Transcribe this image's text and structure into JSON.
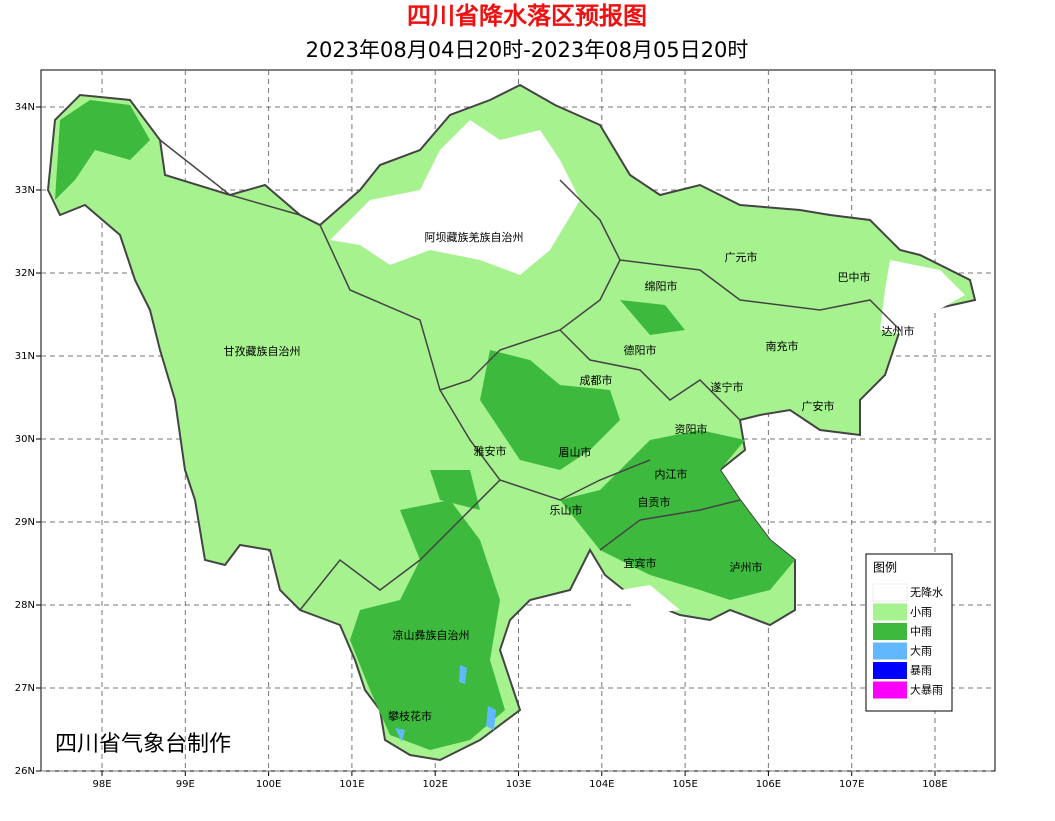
{
  "title": "四川省降水落区预报图",
  "subtitle": "2023年08月04日20时-2023年08月05日20时",
  "credit": "四川省气象台制作",
  "lon_ticks": [
    {
      "value": 98,
      "label": "98E"
    },
    {
      "value": 99,
      "label": "99E"
    },
    {
      "value": 100,
      "label": "100E"
    },
    {
      "value": 101,
      "label": "101E"
    },
    {
      "value": 102,
      "label": "102E"
    },
    {
      "value": 103,
      "label": "103E"
    },
    {
      "value": 104,
      "label": "104E"
    },
    {
      "value": 105,
      "label": "105E"
    },
    {
      "value": 106,
      "label": "106E"
    },
    {
      "value": 107,
      "label": "107E"
    },
    {
      "value": 108,
      "label": "108E"
    }
  ],
  "lat_ticks": [
    {
      "value": 26,
      "label": "26N"
    },
    {
      "value": 27,
      "label": "27N"
    },
    {
      "value": 28,
      "label": "28N"
    },
    {
      "value": 29,
      "label": "29N"
    },
    {
      "value": 30,
      "label": "30N"
    },
    {
      "value": 31,
      "label": "31N"
    },
    {
      "value": 32,
      "label": "32N"
    },
    {
      "value": 33,
      "label": "33N"
    },
    {
      "value": 34,
      "label": "34N"
    }
  ],
  "places": [
    "阿坝藏族羌族自治州",
    "甘孜藏族自治州",
    "广元市",
    "巴中市",
    "绵阳市",
    "达州市",
    "德阳市",
    "南充市",
    "成都市",
    "遂宁市",
    "广安市",
    "资阳市",
    "雅安市",
    "眉山市",
    "内江市",
    "自贡市",
    "乐山市",
    "宜宾市",
    "泸州市",
    "凉山彝族自治州",
    "攀枝花市"
  ],
  "legend": {
    "title": "图例",
    "items": [
      {
        "label": "无降水",
        "color": "#ffffff"
      },
      {
        "label": "小雨",
        "color": "#a6f28f"
      },
      {
        "label": "中雨",
        "color": "#3dba3d"
      },
      {
        "label": "大雨",
        "color": "#61b8ff"
      },
      {
        "label": "暴雨",
        "color": "#0000fe"
      },
      {
        "label": "大暴雨",
        "color": "#fa00fa"
      }
    ]
  }
}
